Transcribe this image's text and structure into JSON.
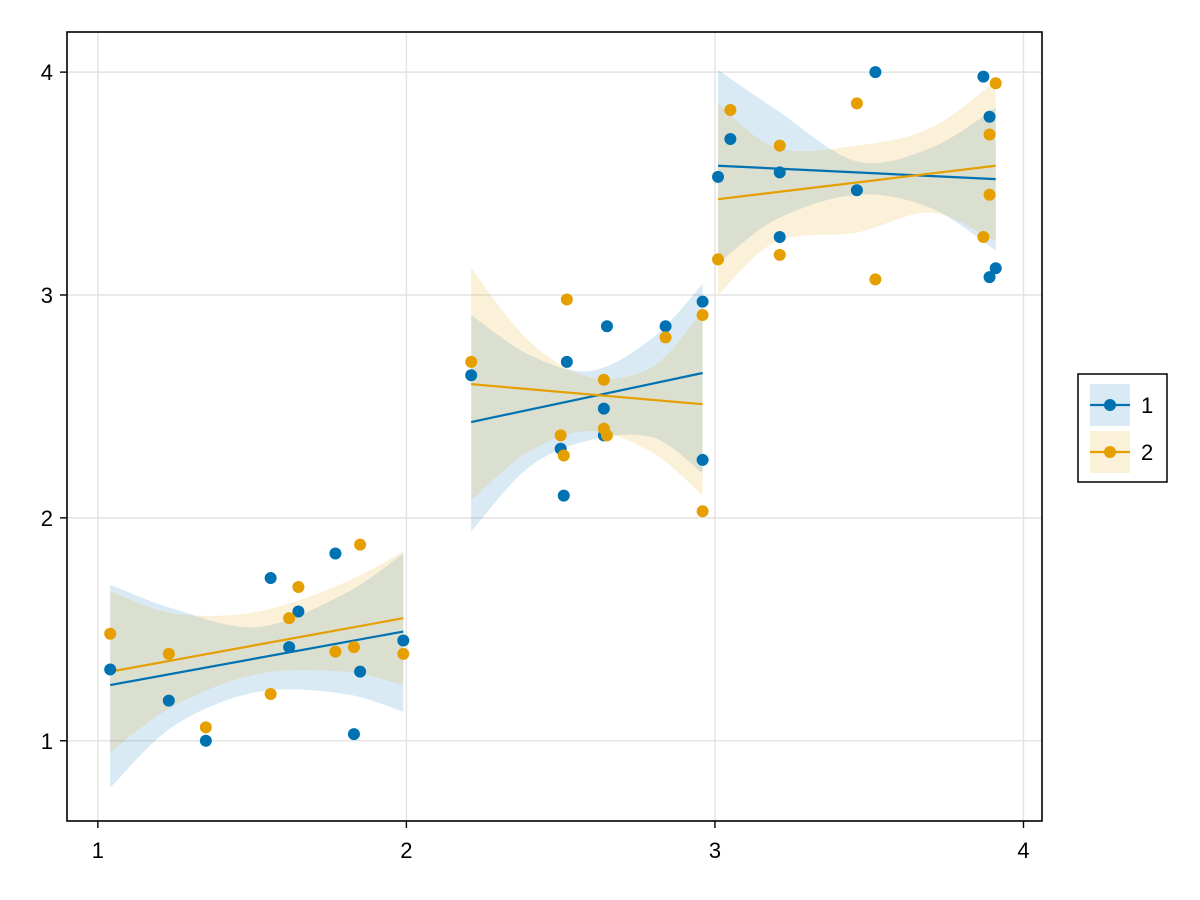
{
  "chart_data": {
    "type": "scatter",
    "xlim": [
      0.9,
      4.06
    ],
    "ylim": [
      0.64,
      4.18
    ],
    "x_ticks": [
      1,
      2,
      3,
      4
    ],
    "y_ticks": [
      1,
      2,
      3,
      4
    ],
    "x_tick_labels": [
      "1",
      "2",
      "3",
      "4"
    ],
    "y_tick_labels": [
      "1",
      "2",
      "3",
      "4"
    ],
    "grid": true,
    "legend_position": "right",
    "series": [
      {
        "name": "1",
        "color": "#0072b2",
        "band_color": "#0072b2",
        "points": [
          [
            1.04,
            1.32
          ],
          [
            1.23,
            1.18
          ],
          [
            1.35,
            1.0
          ],
          [
            1.56,
            1.73
          ],
          [
            1.62,
            1.42
          ],
          [
            1.65,
            1.58
          ],
          [
            1.77,
            1.84
          ],
          [
            1.83,
            1.03
          ],
          [
            1.85,
            1.31
          ],
          [
            1.99,
            1.45
          ],
          [
            2.21,
            2.64
          ],
          [
            2.5,
            2.31
          ],
          [
            2.51,
            2.1
          ],
          [
            2.52,
            2.7
          ],
          [
            2.64,
            2.37
          ],
          [
            2.64,
            2.49
          ],
          [
            2.65,
            2.86
          ],
          [
            2.84,
            2.86
          ],
          [
            2.96,
            2.97
          ],
          [
            2.96,
            2.26
          ],
          [
            3.01,
            3.53
          ],
          [
            3.05,
            3.7
          ],
          [
            3.21,
            3.26
          ],
          [
            3.21,
            3.55
          ],
          [
            3.46,
            3.47
          ],
          [
            3.52,
            4.0
          ],
          [
            3.87,
            3.98
          ],
          [
            3.89,
            3.8
          ],
          [
            3.89,
            3.08
          ],
          [
            3.91,
            3.12
          ]
        ],
        "fits": [
          {
            "x": [
              1.04,
              1.99
            ],
            "y": [
              1.25,
              1.49
            ],
            "band_x": [
              1.04,
              1.25,
              1.52,
              1.8,
              1.99
            ],
            "band_lower": [
              0.79,
              1.07,
              1.22,
              1.21,
              1.13
            ],
            "band_upper": [
              1.7,
              1.59,
              1.51,
              1.66,
              1.84
            ]
          },
          {
            "x": [
              2.21,
              2.96
            ],
            "y": [
              2.43,
              2.65
            ],
            "band_x": [
              2.21,
              2.4,
              2.6,
              2.8,
              2.96
            ],
            "band_lower": [
              1.94,
              2.23,
              2.35,
              2.36,
              2.2
            ],
            "band_upper": [
              2.91,
              2.73,
              2.66,
              2.81,
              3.05
            ]
          },
          {
            "x": [
              3.01,
              3.91
            ],
            "y": [
              3.58,
              3.52
            ],
            "band_x": [
              3.01,
              3.2,
              3.46,
              3.7,
              3.91
            ],
            "band_lower": [
              3.14,
              3.34,
              3.45,
              3.39,
              3.2
            ],
            "band_upper": [
              4.01,
              3.83,
              3.6,
              3.66,
              3.84
            ]
          }
        ]
      },
      {
        "name": "2",
        "color": "#e69f00",
        "band_color": "#e69f00",
        "points": [
          [
            1.04,
            1.48
          ],
          [
            1.23,
            1.39
          ],
          [
            1.35,
            1.06
          ],
          [
            1.56,
            1.21
          ],
          [
            1.62,
            1.55
          ],
          [
            1.65,
            1.69
          ],
          [
            1.77,
            1.4
          ],
          [
            1.83,
            1.42
          ],
          [
            1.85,
            1.88
          ],
          [
            1.99,
            1.39
          ],
          [
            2.21,
            2.7
          ],
          [
            2.5,
            2.37
          ],
          [
            2.51,
            2.28
          ],
          [
            2.52,
            2.98
          ],
          [
            2.64,
            2.4
          ],
          [
            2.64,
            2.62
          ],
          [
            2.65,
            2.37
          ],
          [
            2.84,
            2.81
          ],
          [
            2.96,
            2.91
          ],
          [
            2.96,
            2.03
          ],
          [
            3.01,
            3.16
          ],
          [
            3.05,
            3.83
          ],
          [
            3.21,
            3.18
          ],
          [
            3.21,
            3.67
          ],
          [
            3.46,
            3.86
          ],
          [
            3.52,
            3.07
          ],
          [
            3.87,
            3.26
          ],
          [
            3.89,
            3.72
          ],
          [
            3.89,
            3.45
          ],
          [
            3.91,
            3.95
          ]
        ],
        "fits": [
          {
            "x": [
              1.04,
              1.99
            ],
            "y": [
              1.31,
              1.55
            ],
            "band_x": [
              1.04,
              1.25,
              1.52,
              1.8,
              1.99
            ],
            "band_lower": [
              0.95,
              1.16,
              1.3,
              1.31,
              1.25
            ],
            "band_upper": [
              1.67,
              1.57,
              1.58,
              1.71,
              1.85
            ]
          },
          {
            "x": [
              2.21,
              2.96
            ],
            "y": [
              2.6,
              2.51
            ],
            "band_x": [
              2.21,
              2.4,
              2.6,
              2.8,
              2.96
            ],
            "band_lower": [
              2.08,
              2.3,
              2.39,
              2.29,
              2.1
            ],
            "band_upper": [
              3.12,
              2.79,
              2.63,
              2.68,
              2.93
            ]
          },
          {
            "x": [
              3.01,
              3.91
            ],
            "y": [
              3.43,
              3.58
            ],
            "band_x": [
              3.01,
              3.2,
              3.46,
              3.7,
              3.91
            ],
            "band_lower": [
              3.0,
              3.24,
              3.28,
              3.37,
              3.24
            ],
            "band_upper": [
              3.86,
              3.66,
              3.67,
              3.75,
              3.96
            ]
          }
        ]
      }
    ]
  }
}
